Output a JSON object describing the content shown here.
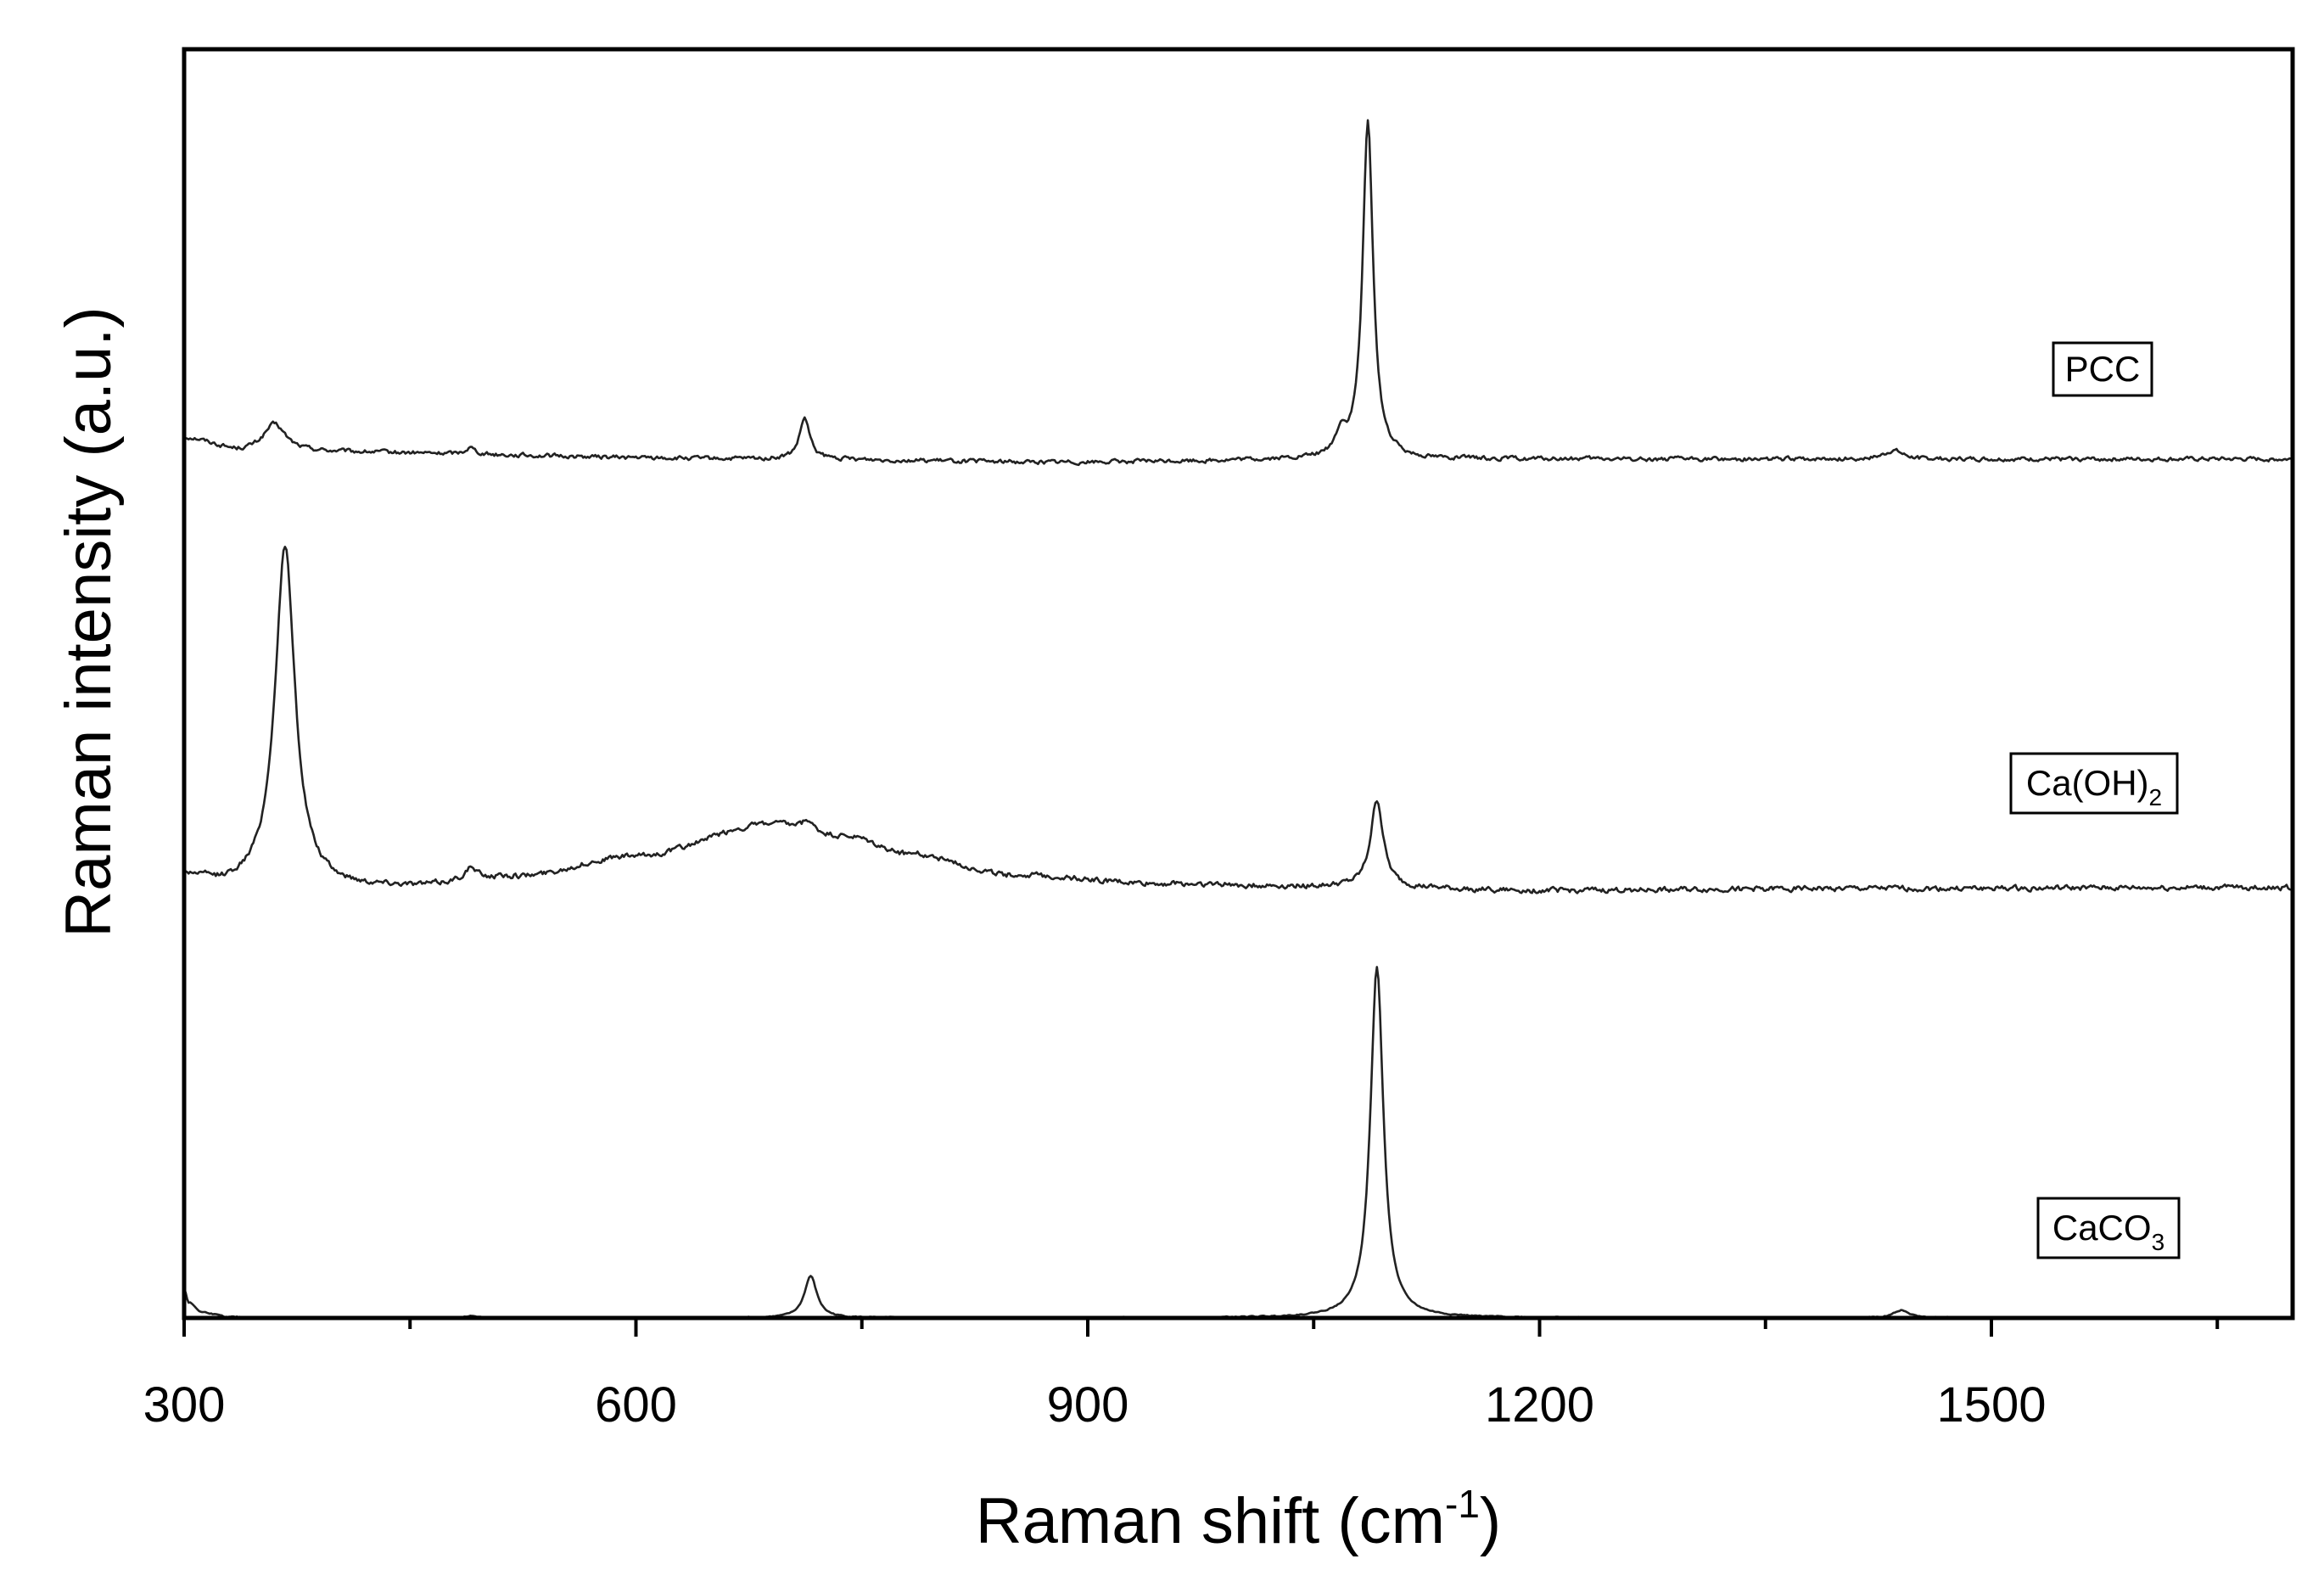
{
  "chart_data": {
    "type": "line",
    "title": "",
    "xlabel": "Raman shift (cm",
    "xlabel_sup": "-1",
    "xlabel_close": ")",
    "ylabel": "Raman intensity (a.u.)",
    "xlim": [
      300,
      1700
    ],
    "x_major_ticks": [
      300,
      600,
      900,
      1200,
      1500
    ],
    "x_minor_ticks": [
      450,
      750,
      1050,
      1350,
      1650
    ],
    "x_tick_labels": [
      "300",
      "600",
      "900",
      "1200",
      "1500"
    ],
    "y_ticks_shown": false,
    "grid": false,
    "ylim": [
      0,
      130
    ],
    "series": [
      {
        "name": "PCC",
        "label_main": "PCC",
        "label_sub": "",
        "offset": 88,
        "baseline": [
          [
            300,
            2.2
          ],
          [
            340,
            0.8
          ],
          [
            700,
            0
          ],
          [
            880,
            -0.3
          ],
          [
            1100,
            0
          ],
          [
            1700,
            0
          ]
        ],
        "noise": 0.35,
        "peaks": [
          {
            "center": 360,
            "height": 2.8,
            "width": 9
          },
          {
            "center": 490,
            "height": 0.7,
            "width": 4
          },
          {
            "center": 712,
            "height": 4.2,
            "width": 4
          },
          {
            "center": 1068,
            "height": 2.2,
            "width": 4
          },
          {
            "center": 1086,
            "height": 34.5,
            "width": 4.2
          },
          {
            "center": 1435,
            "height": 0.9,
            "width": 7
          }
        ]
      },
      {
        "name": "Ca(OH)2",
        "label_main": "Ca(OH)",
        "label_sub": "2",
        "offset": 44,
        "baseline": [
          [
            300,
            1.2
          ],
          [
            330,
            0.2
          ],
          [
            400,
            0
          ],
          [
            450,
            0.2
          ],
          [
            520,
            1.2
          ],
          [
            600,
            3.3
          ],
          [
            690,
            6.6
          ],
          [
            740,
            5.3
          ],
          [
            780,
            3.6
          ],
          [
            850,
            1.4
          ],
          [
            950,
            0.5
          ],
          [
            1050,
            0.2
          ],
          [
            1200,
            -0.2
          ],
          [
            1400,
            0
          ],
          [
            1700,
            0.1
          ]
        ],
        "noise": 0.45,
        "peaks": [
          {
            "center": 367,
            "height": 35.0,
            "width": 8
          },
          {
            "center": 490,
            "height": 1.2,
            "width": 5
          },
          {
            "center": 714,
            "height": 1.0,
            "width": 4
          },
          {
            "center": 1092,
            "height": 9.0,
            "width": 5
          }
        ]
      },
      {
        "name": "CaCO3",
        "label_main": "CaCO",
        "label_sub": "3",
        "offset": 0,
        "baseline": [
          [
            300,
            3.0
          ],
          [
            303,
            1.6
          ],
          [
            312,
            0.6
          ],
          [
            330,
            0.1
          ],
          [
            360,
            0
          ],
          [
            1700,
            0
          ]
        ],
        "noise": 0.1,
        "peaks": [
          {
            "center": 490,
            "height": 0.25,
            "width": 4
          },
          {
            "center": 716,
            "height": 4.3,
            "width": 5
          },
          {
            "center": 1092,
            "height": 36.0,
            "width": 5.2
          },
          {
            "center": 1440,
            "height": 0.8,
            "width": 6
          }
        ]
      }
    ]
  }
}
